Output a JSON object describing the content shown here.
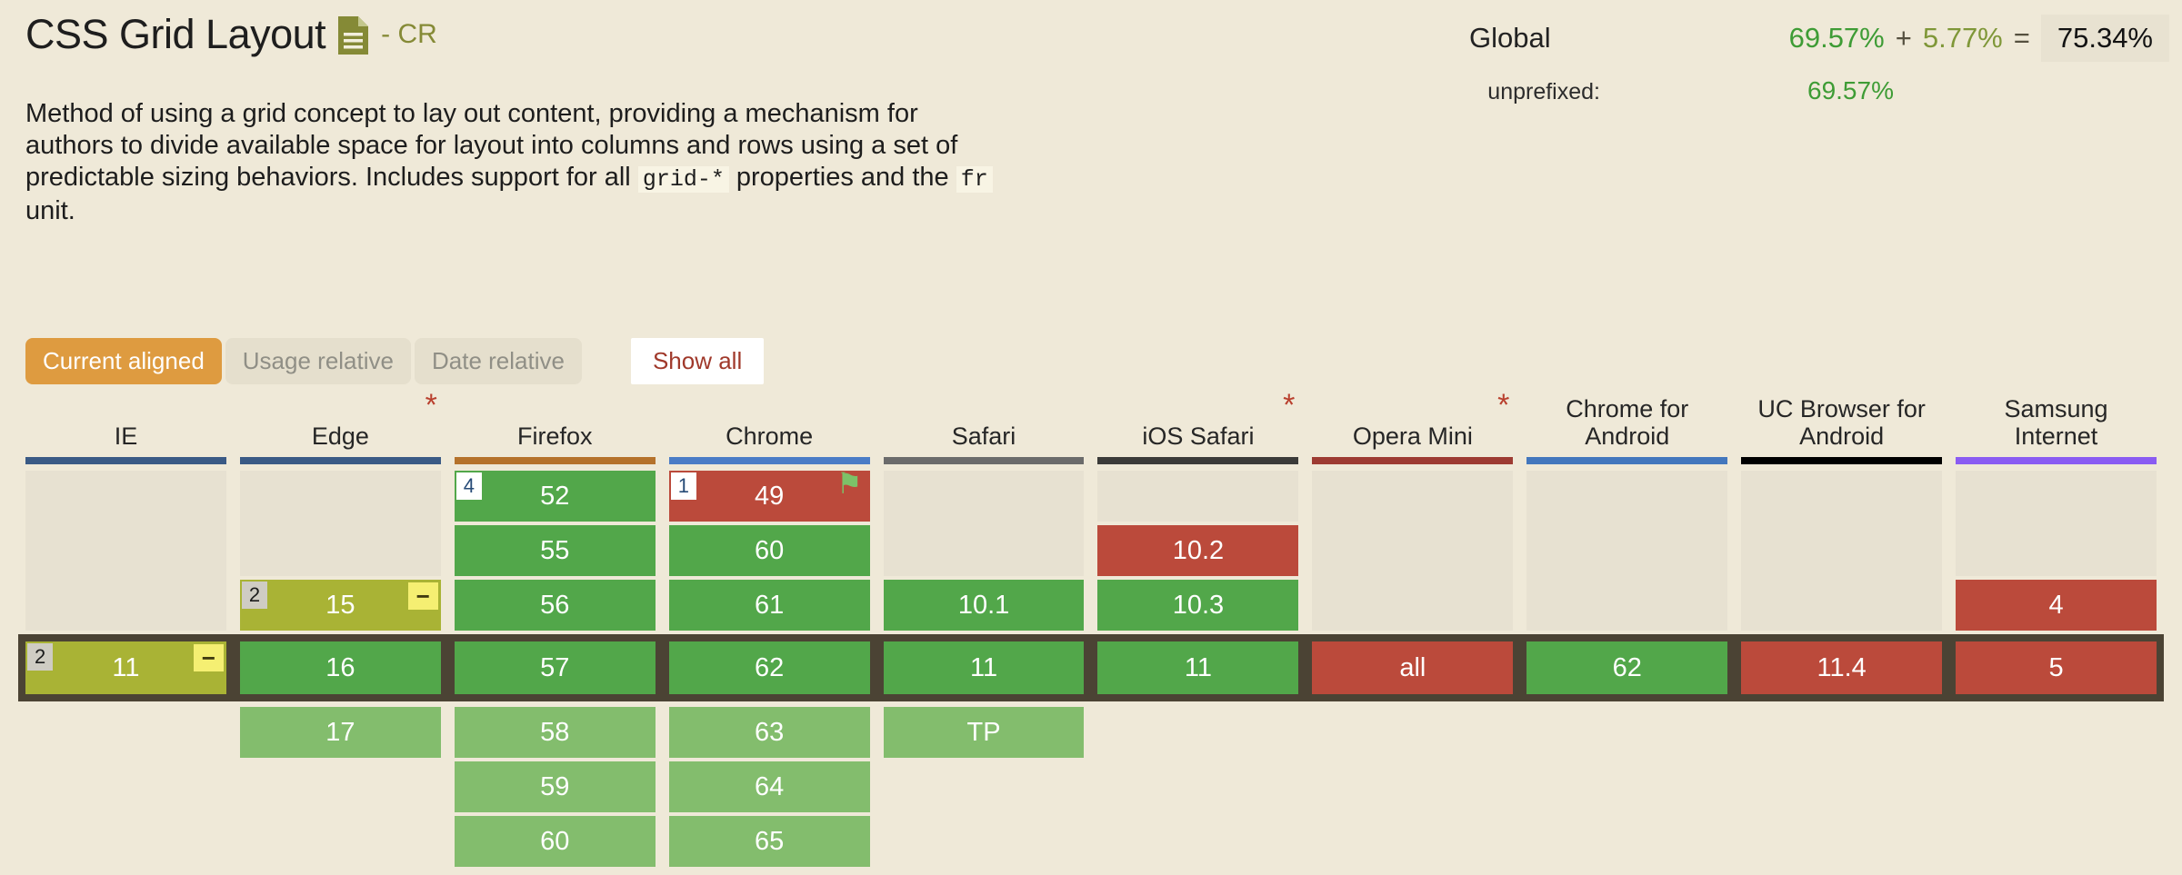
{
  "colors": {
    "page_bg": "#efe9d8",
    "supported": "#52a74a",
    "supported_future": "#83bd6d",
    "partial": "#a9b335",
    "unsupported": "#bb4a3b",
    "unknown": "#e7e1d1",
    "current_row_band": "#4b4334",
    "active_tab_orange": "#de9b40",
    "show_all_red": "#a0392b",
    "spec_olive": "#858a36",
    "usage_green": "#3e9c35",
    "usage_olive": "#7f9738",
    "asterisk_red": "#b9402e"
  },
  "icons": {
    "minus": "−",
    "flag": "⚑",
    "asterisk": "*"
  },
  "header": {
    "title": "CSS Grid Layout",
    "spec_status": "- CR",
    "usage": {
      "global_label": "Global",
      "supported_pct": "69.57%",
      "plus": "+",
      "partial_pct": "5.77%",
      "equals": "=",
      "total_pct": "75.34%",
      "unprefixed_label": "unprefixed:",
      "unprefixed_pct": "69.57%"
    },
    "description": [
      {
        "text": "Method of using a grid concept to lay out content, providing a mechanism for authors to divide available space for layout into columns and rows using a set of predictable sizing behaviors. Includes support for all "
      },
      {
        "code": "grid-*"
      },
      {
        "text": " properties and the "
      },
      {
        "code": "fr"
      },
      {
        "text": " unit."
      }
    ]
  },
  "toolbar": {
    "tabs": [
      {
        "label": "Current aligned",
        "active": true
      },
      {
        "label": "Usage relative",
        "active": false
      },
      {
        "label": "Date relative",
        "active": false
      }
    ],
    "show_all_label": "Show all"
  },
  "table": {
    "rows": 7,
    "current_row": 4,
    "browsers": [
      {
        "name": "IE",
        "asterisk": false,
        "bar_color": "#3a5a85",
        "cells": [
          {
            "row": 1,
            "span": 3,
            "type": "unknown"
          },
          {
            "row": 4,
            "span": 1,
            "type": "partial",
            "label": "11",
            "note": "2",
            "note_variant": "gray",
            "minus": true
          }
        ]
      },
      {
        "name": "Edge",
        "asterisk": true,
        "bar_color": "#3a5a85",
        "cells": [
          {
            "row": 1,
            "span": 2,
            "type": "unknown"
          },
          {
            "row": 3,
            "span": 1,
            "type": "partial",
            "label": "15",
            "note": "2",
            "note_variant": "gray",
            "minus": true
          },
          {
            "row": 4,
            "span": 1,
            "type": "supported",
            "label": "16"
          },
          {
            "row": 5,
            "span": 1,
            "type": "supported_future",
            "label": "17"
          }
        ]
      },
      {
        "name": "Firefox",
        "asterisk": false,
        "bar_color": "#b5722b",
        "cells": [
          {
            "row": 1,
            "span": 1,
            "type": "supported",
            "label": "52",
            "note": "4",
            "note_variant": "white"
          },
          {
            "row": 2,
            "span": 1,
            "type": "supported",
            "label": "55"
          },
          {
            "row": 3,
            "span": 1,
            "type": "supported",
            "label": "56"
          },
          {
            "row": 4,
            "span": 1,
            "type": "supported",
            "label": "57"
          },
          {
            "row": 5,
            "span": 1,
            "type": "supported_future",
            "label": "58"
          },
          {
            "row": 6,
            "span": 1,
            "type": "supported_future",
            "label": "59"
          },
          {
            "row": 7,
            "span": 1,
            "type": "supported_future",
            "label": "60"
          }
        ]
      },
      {
        "name": "Chrome",
        "asterisk": false,
        "bar_color": "#4a7cc6",
        "cells": [
          {
            "row": 1,
            "span": 1,
            "type": "unsupported",
            "label": "49",
            "note": "1",
            "note_variant": "white",
            "flag": true
          },
          {
            "row": 2,
            "span": 1,
            "type": "supported",
            "label": "60"
          },
          {
            "row": 3,
            "span": 1,
            "type": "supported",
            "label": "61"
          },
          {
            "row": 4,
            "span": 1,
            "type": "supported",
            "label": "62"
          },
          {
            "row": 5,
            "span": 1,
            "type": "supported_future",
            "label": "63"
          },
          {
            "row": 6,
            "span": 1,
            "type": "supported_future",
            "label": "64"
          },
          {
            "row": 7,
            "span": 1,
            "type": "supported_future",
            "label": "65"
          }
        ]
      },
      {
        "name": "Safari",
        "asterisk": false,
        "bar_color": "#6b6b6b",
        "cells": [
          {
            "row": 1,
            "span": 2,
            "type": "unknown"
          },
          {
            "row": 3,
            "span": 1,
            "type": "supported",
            "label": "10.1"
          },
          {
            "row": 4,
            "span": 1,
            "type": "supported",
            "label": "11"
          },
          {
            "row": 5,
            "span": 1,
            "type": "supported_future",
            "label": "TP"
          }
        ]
      },
      {
        "name": "iOS Safari",
        "asterisk": true,
        "bar_color": "#3b3b39",
        "cells": [
          {
            "row": 1,
            "span": 1,
            "type": "unknown"
          },
          {
            "row": 2,
            "span": 1,
            "type": "unsupported",
            "label": "10.2"
          },
          {
            "row": 3,
            "span": 1,
            "type": "supported",
            "label": "10.3"
          },
          {
            "row": 4,
            "span": 1,
            "type": "supported",
            "label": "11"
          }
        ]
      },
      {
        "name": "Opera Mini",
        "asterisk": true,
        "bar_color": "#9d3b32",
        "cells": [
          {
            "row": 1,
            "span": 3,
            "type": "unknown"
          },
          {
            "row": 4,
            "span": 1,
            "type": "unsupported",
            "label": "all"
          }
        ]
      },
      {
        "name": "Chrome for Android",
        "asterisk": false,
        "bar_color": "#4377bd",
        "cells": [
          {
            "row": 1,
            "span": 3,
            "type": "unknown"
          },
          {
            "row": 4,
            "span": 1,
            "type": "supported",
            "label": "62"
          }
        ]
      },
      {
        "name": "UC Browser for Android",
        "asterisk": false,
        "bar_color": "#000000",
        "cells": [
          {
            "row": 1,
            "span": 3,
            "type": "unknown"
          },
          {
            "row": 4,
            "span": 1,
            "type": "unsupported",
            "label": "11.4"
          }
        ]
      },
      {
        "name": "Samsung Internet",
        "asterisk": false,
        "bar_color": "#8a5cf2",
        "cells": [
          {
            "row": 1,
            "span": 2,
            "type": "unknown"
          },
          {
            "row": 3,
            "span": 1,
            "type": "unsupported",
            "label": "4"
          },
          {
            "row": 4,
            "span": 1,
            "type": "unsupported",
            "label": "5"
          }
        ]
      }
    ]
  }
}
